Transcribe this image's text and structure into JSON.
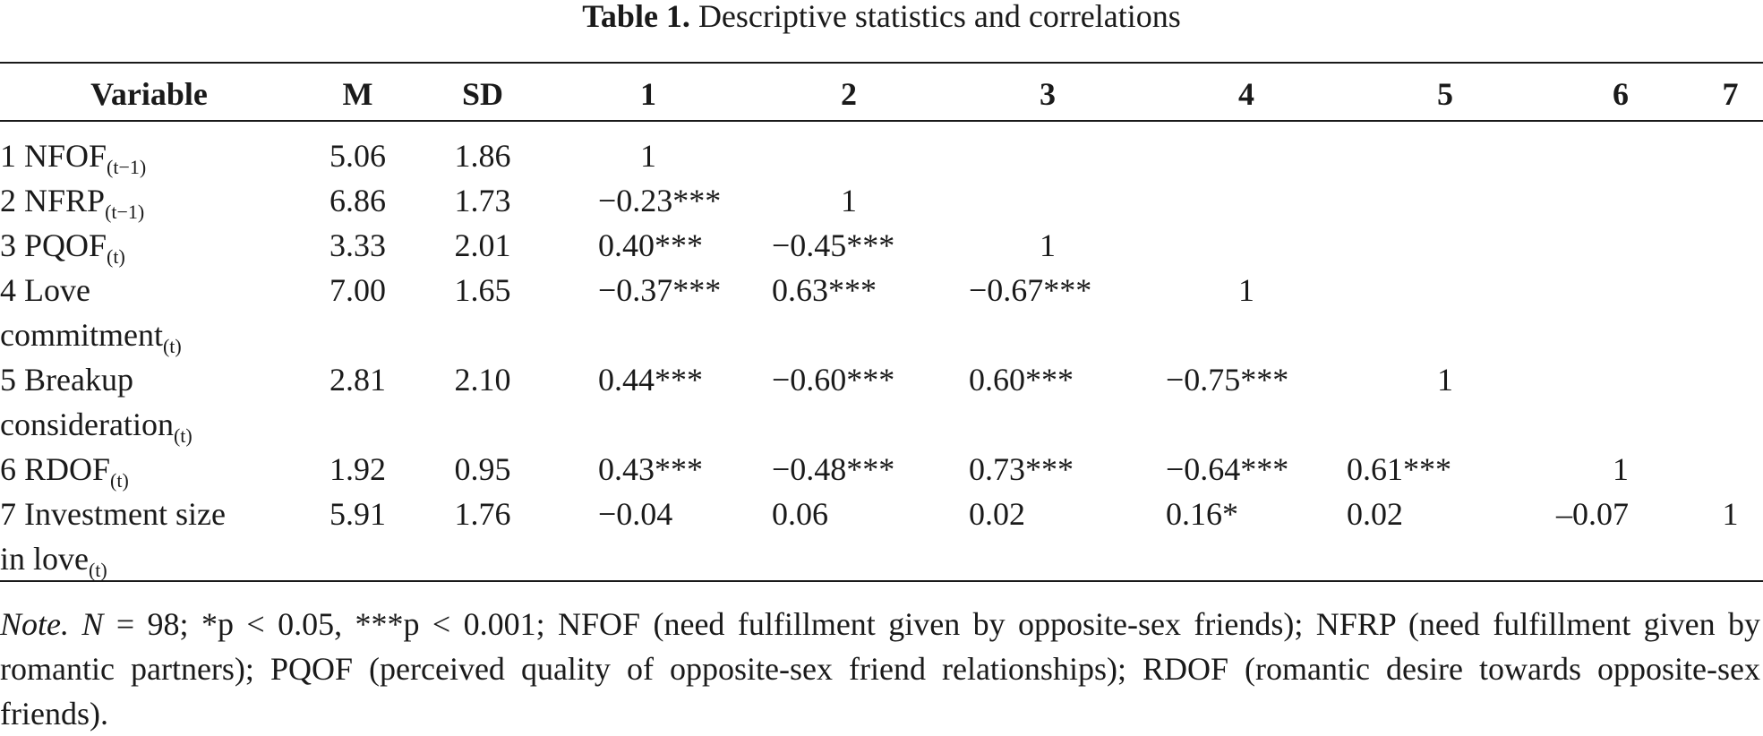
{
  "caption": {
    "label": "Table 1.",
    "text": "Descriptive statistics and correlations"
  },
  "table": {
    "headers": [
      "Variable",
      "M",
      "SD",
      "1",
      "2",
      "3",
      "4",
      "5",
      "6",
      "7"
    ],
    "rows": [
      {
        "name_lines": [
          "1 NFOF"
        ],
        "sub": "(t−1)",
        "m": "5.06",
        "sd": "1.86",
        "corr": [
          "1",
          "",
          "",
          "",
          "",
          "",
          ""
        ]
      },
      {
        "name_lines": [
          "2 NFRP"
        ],
        "sub": "(t−1)",
        "m": "6.86",
        "sd": "1.73",
        "corr": [
          "−0.23***",
          "1",
          "",
          "",
          "",
          "",
          ""
        ]
      },
      {
        "name_lines": [
          "3 PQOF"
        ],
        "sub": "(t)",
        "m": "3.33",
        "sd": "2.01",
        "corr": [
          "0.40***",
          "−0.45***",
          "1",
          "",
          "",
          "",
          ""
        ]
      },
      {
        "name_lines": [
          "4 Love",
          "commitment"
        ],
        "sub": "(t)",
        "m": "7.00",
        "sd": "1.65",
        "corr": [
          "−0.37***",
          "0.63***",
          "−0.67***",
          "1",
          "",
          "",
          ""
        ]
      },
      {
        "name_lines": [
          "5 Breakup",
          "consideration"
        ],
        "sub": "(t)",
        "m": "2.81",
        "sd": "2.10",
        "corr": [
          "0.44***",
          "−0.60***",
          "0.60***",
          "−0.75***",
          "1",
          "",
          ""
        ]
      },
      {
        "name_lines": [
          "6 RDOF"
        ],
        "sub": "(t)",
        "m": "1.92",
        "sd": "0.95",
        "corr": [
          "0.43***",
          "−0.48***",
          "0.73***",
          "−0.64***",
          "0.61***",
          "1",
          ""
        ]
      },
      {
        "name_lines": [
          "7 Investment size",
          "in love"
        ],
        "sub": "(t)",
        "m": "5.91",
        "sd": "1.76",
        "corr": [
          "−0.04",
          "0.06",
          "0.02",
          "0.16*",
          "0.02",
          "–0.07",
          "1"
        ]
      }
    ]
  },
  "note": {
    "lead": "Note.",
    "n_label": "N",
    "text_after_n": " = 98; *p < 0.05, ***p < 0.001; NFOF (need fulfillment given by opposite-sex friends); NFRP (need fulfillment given by romantic partners); PQOF (perceived quality of opposite-sex friend relationships); RDOF (romantic desire towards opposite-sex friends)."
  }
}
